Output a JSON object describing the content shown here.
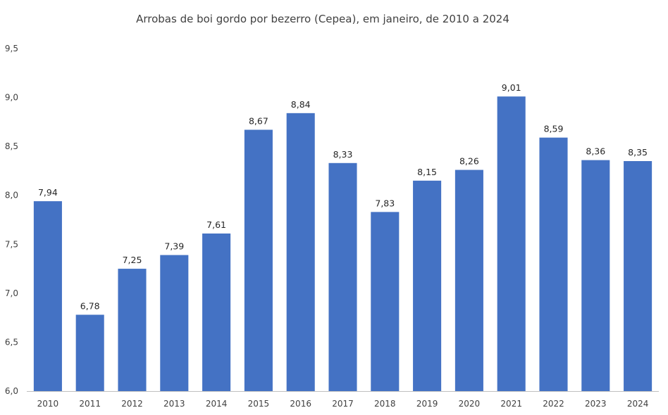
{
  "chart_data": {
    "type": "bar",
    "title": "Arrobas de boi gordo por bezerro (Cepea), em janeiro, de 2010 a 2024",
    "xlabel": "",
    "ylabel": "",
    "categories": [
      "2010",
      "2011",
      "2012",
      "2013",
      "2014",
      "2015",
      "2016",
      "2017",
      "2018",
      "2019",
      "2020",
      "2021",
      "2022",
      "2023",
      "2024"
    ],
    "values": [
      7.94,
      6.78,
      7.25,
      7.39,
      7.61,
      8.67,
      8.84,
      8.33,
      7.83,
      8.15,
      8.26,
      9.01,
      8.59,
      8.36,
      8.35
    ],
    "data_labels": [
      "7,94",
      "6,78",
      "7,25",
      "7,39",
      "7,61",
      "8,67",
      "8,84",
      "8,33",
      "7,83",
      "8,15",
      "8,26",
      "9,01",
      "8,59",
      "8,36",
      "8,35"
    ],
    "ylim": [
      6.0,
      9.5
    ],
    "y_ticks": [
      6.0,
      6.5,
      7.0,
      7.5,
      8.0,
      8.5,
      9.0,
      9.5
    ],
    "y_tick_labels": [
      "6,0",
      "6,5",
      "7,0",
      "7,5",
      "8,0",
      "8,5",
      "9,0",
      "9,5"
    ],
    "grid": false,
    "legend": "none",
    "colors": {
      "bar": "#4472C4",
      "axis": "#bfbfbf"
    }
  }
}
